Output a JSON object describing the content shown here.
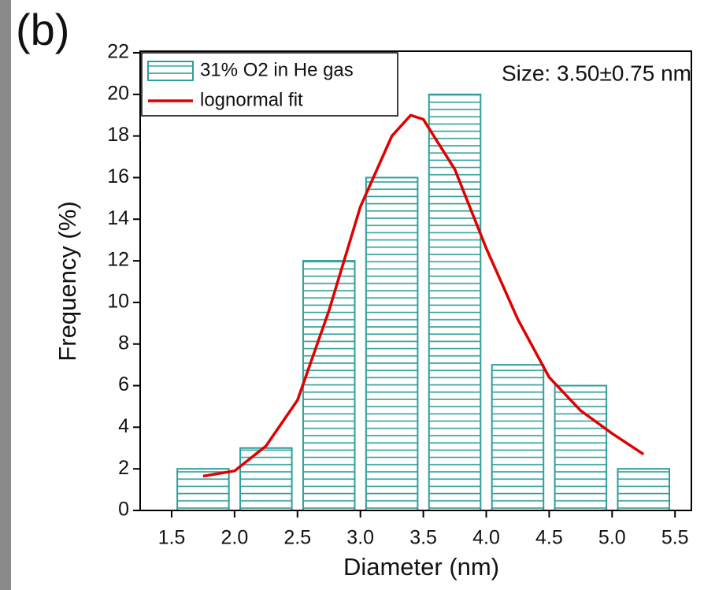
{
  "chart_data": {
    "type": "histogram",
    "panel_label": "(b)",
    "annotation": "Size: 3.50±0.75 nm",
    "x_label": "Diameter (nm)",
    "y_label": "Frequency (%)",
    "bins": [
      1.5,
      2.0,
      2.5,
      3.0,
      3.5,
      4.0,
      4.5,
      5.0,
      5.5
    ],
    "series": [
      {
        "name": "31% O2 in He gas",
        "type": "histogram",
        "color": "#2e9f9c",
        "values": [
          2,
          3,
          12,
          16,
          20,
          7,
          6,
          2
        ]
      },
      {
        "name": "lognormal fit",
        "type": "line",
        "color": "#e00000",
        "x": [
          1.75,
          2.0,
          2.25,
          2.5,
          2.75,
          3.0,
          3.25,
          3.4,
          3.5,
          3.75,
          4.0,
          4.25,
          4.5,
          4.75,
          5.0,
          5.25
        ],
        "values": [
          1.65,
          1.9,
          3.1,
          5.3,
          9.6,
          14.6,
          18.0,
          19.0,
          18.8,
          16.4,
          12.6,
          9.2,
          6.4,
          4.8,
          3.7,
          2.7
        ]
      }
    ],
    "xlim": [
      1.25,
      5.63
    ],
    "xticks": [
      1.5,
      {
        "value": 2,
        "label": "2.0"
      },
      2.5,
      {
        "value": 3,
        "label": "3.0"
      },
      3.5,
      {
        "value": 4,
        "label": "4.0"
      },
      4.5,
      {
        "value": 5,
        "label": "5.0"
      },
      5.5
    ],
    "ylim": [
      0,
      22
    ],
    "yticks": [
      0,
      2,
      4,
      6,
      8,
      10,
      12,
      14,
      16,
      18,
      20,
      22
    ],
    "legend": "top-left"
  }
}
